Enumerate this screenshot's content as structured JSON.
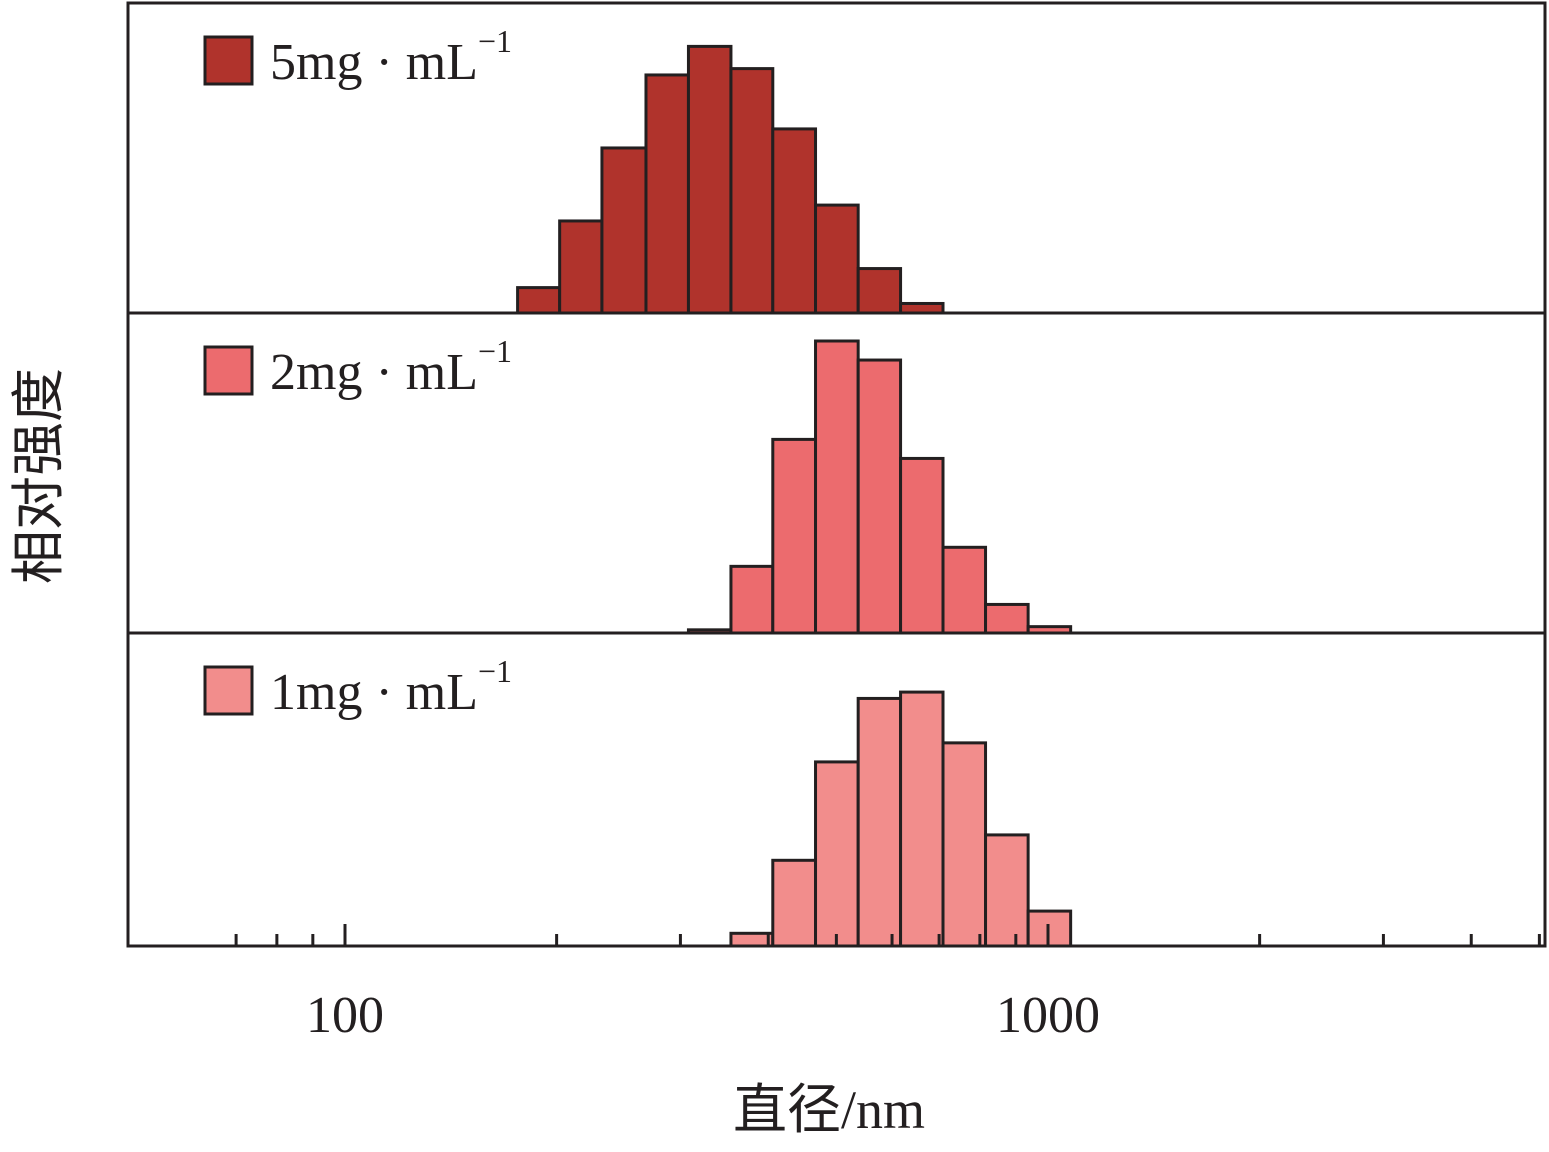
{
  "chart_data": {
    "type": "bar",
    "layout": "stacked-panels",
    "xscale": "log",
    "xlabel": "直径/nm",
    "ylabel": "相对强度",
    "xlim": [
      55,
      5800
    ],
    "xticks_major": [
      100,
      1000
    ],
    "xtick_labels": [
      "100",
      "1000"
    ],
    "xticks_minor": [
      70,
      80,
      90,
      200,
      300,
      400,
      500,
      600,
      700,
      800,
      900,
      2000,
      3000,
      4000,
      5000
    ],
    "bin_edges": [
      176,
      202,
      232,
      268,
      308,
      354,
      406,
      467,
      537,
      617,
      709,
      815,
      937,
      1077,
      1237
    ],
    "series": [
      {
        "name": "5mg · mL",
        "name_sup": "−1",
        "legend_text": "5mg · mL⁻¹",
        "color": "#b0332c",
        "values": [
          8,
          29,
          52,
          75,
          84,
          77,
          58,
          34,
          14,
          3,
          0,
          0,
          0,
          0
        ]
      },
      {
        "name": "2mg · mL",
        "name_sup": "−1",
        "legend_text": "2mg · mL⁻¹",
        "color": "#ec6b6e",
        "values": [
          0,
          0,
          0,
          0,
          1,
          21,
          61,
          92,
          86,
          55,
          27,
          9,
          2,
          0
        ]
      },
      {
        "name": "1mg · mL",
        "name_sup": "−1",
        "legend_text": "1mg · mL⁻¹",
        "color": "#f28d8c",
        "values": [
          0,
          0,
          0,
          0,
          0,
          4,
          27,
          58,
          78,
          80,
          64,
          35,
          11,
          0
        ]
      }
    ],
    "legend_position": "top-left of each panel",
    "grid": false
  }
}
